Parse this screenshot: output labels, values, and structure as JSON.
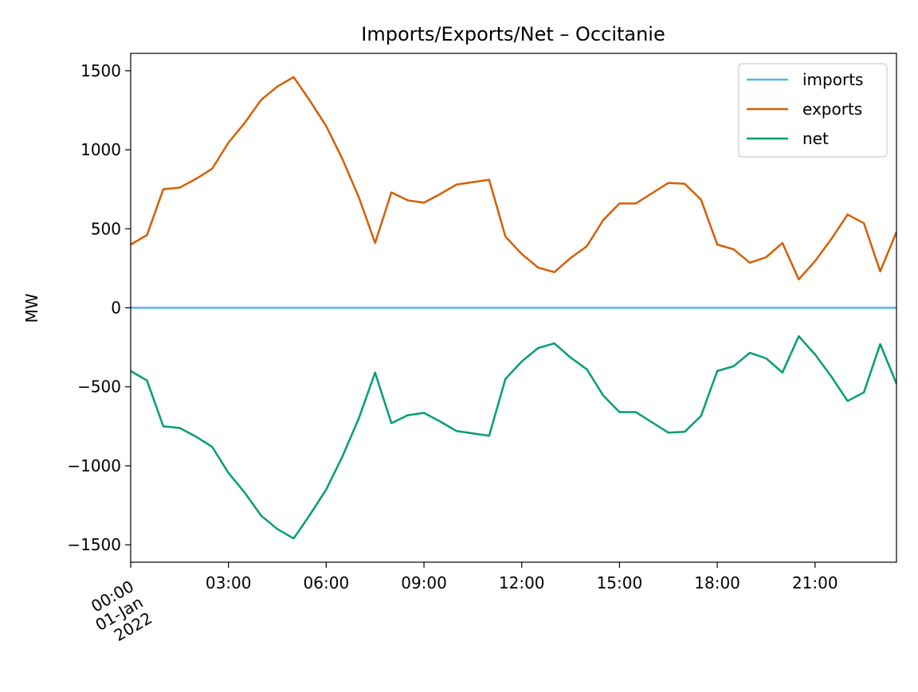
{
  "chart_data": {
    "type": "line",
    "title": "Imports/Exports/Net – Occitanie",
    "xlabel": "",
    "ylabel": "MW",
    "xlim": [
      "2022-01-01 00:00",
      "2022-01-01 23:30"
    ],
    "ylim": [
      -1610,
      1610
    ],
    "yticks": [
      -1500,
      -1000,
      -500,
      0,
      500,
      1000,
      1500
    ],
    "ytick_labels": [
      "−1500",
      "−1000",
      "−500",
      "0",
      "500",
      "1000",
      "1500"
    ],
    "xticks": [
      "2022-01-01 00:00",
      "2022-01-01 03:00",
      "2022-01-01 06:00",
      "2022-01-01 09:00",
      "2022-01-01 12:00",
      "2022-01-01 15:00",
      "2022-01-01 18:00",
      "2022-01-01 21:00"
    ],
    "xtick_labels": [
      "03:00",
      "06:00",
      "09:00",
      "12:00",
      "15:00",
      "18:00",
      "21:00"
    ],
    "first_xtick_label": [
      "00:00",
      "01-Jan",
      "2022"
    ],
    "grid": false,
    "legend_position": "top-right",
    "x": [
      "00:00",
      "00:30",
      "01:00",
      "01:30",
      "02:00",
      "02:30",
      "03:00",
      "03:30",
      "04:00",
      "04:30",
      "05:00",
      "05:30",
      "06:00",
      "06:30",
      "07:00",
      "07:30",
      "08:00",
      "08:30",
      "09:00",
      "09:30",
      "10:00",
      "10:30",
      "11:00",
      "11:30",
      "12:00",
      "12:30",
      "13:00",
      "13:30",
      "14:00",
      "14:30",
      "15:00",
      "15:30",
      "16:00",
      "16:30",
      "17:00",
      "17:30",
      "18:00",
      "18:30",
      "19:00",
      "19:30",
      "20:00",
      "20:30",
      "21:00",
      "21:30",
      "22:00",
      "22:30",
      "23:00",
      "23:30"
    ],
    "series": [
      {
        "name": "imports",
        "color": "#56b4e9",
        "values": [
          0,
          0,
          0,
          0,
          0,
          0,
          0,
          0,
          0,
          0,
          0,
          0,
          0,
          0,
          0,
          0,
          0,
          0,
          0,
          0,
          0,
          0,
          0,
          0,
          0,
          0,
          0,
          0,
          0,
          0,
          0,
          0,
          0,
          0,
          0,
          0,
          0,
          0,
          0,
          0,
          0,
          0,
          0,
          0,
          0,
          0,
          0,
          0
        ]
      },
      {
        "name": "exports",
        "color": "#d55e00",
        "values": [
          400,
          460,
          750,
          760,
          815,
          880,
          1045,
          1170,
          1315,
          1400,
          1460,
          1310,
          1150,
          940,
          700,
          410,
          730,
          680,
          665,
          720,
          780,
          795,
          810,
          450,
          340,
          255,
          225,
          315,
          390,
          555,
          660,
          660,
          725,
          790,
          785,
          685,
          400,
          370,
          285,
          320,
          410,
          180,
          295,
          435,
          590,
          535,
          230,
          480
        ]
      },
      {
        "name": "net",
        "color": "#009e73",
        "values": [
          -400,
          -460,
          -750,
          -760,
          -815,
          -880,
          -1045,
          -1170,
          -1315,
          -1400,
          -1460,
          -1310,
          -1150,
          -940,
          -700,
          -410,
          -730,
          -680,
          -665,
          -720,
          -780,
          -795,
          -810,
          -450,
          -340,
          -255,
          -225,
          -315,
          -390,
          -555,
          -660,
          -660,
          -725,
          -790,
          -785,
          -685,
          -400,
          -370,
          -285,
          -320,
          -410,
          -180,
          -295,
          -435,
          -590,
          -535,
          -230,
          -480
        ]
      }
    ]
  }
}
